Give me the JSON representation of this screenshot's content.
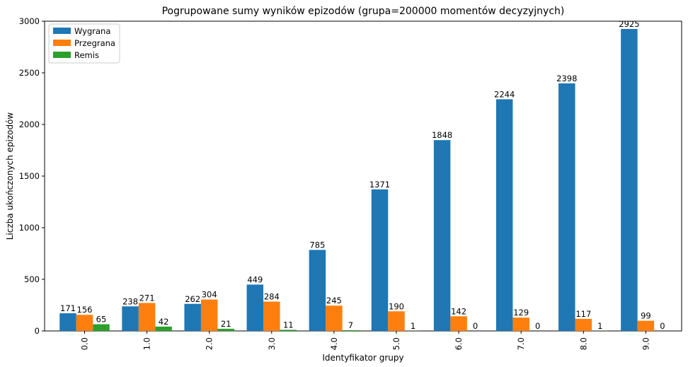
{
  "chart_data": {
    "type": "bar",
    "title": "Pogrupowane sumy wyników epizodów (grupa=200000 momentów decyzyjnych)",
    "xlabel": "Identyfikator grupy",
    "ylabel": "Liczba ukończonych epizodów",
    "categories": [
      "0.0",
      "1.0",
      "2.0",
      "3.0",
      "4.0",
      "5.0",
      "6.0",
      "7.0",
      "8.0",
      "9.0"
    ],
    "series": [
      {
        "name": "Wygrana",
        "color": "#1f77b4",
        "values": [
          171,
          238,
          262,
          449,
          785,
          1371,
          1848,
          2244,
          2398,
          2925
        ]
      },
      {
        "name": "Przegrana",
        "color": "#ff7f0e",
        "values": [
          156,
          271,
          304,
          284,
          245,
          190,
          142,
          129,
          117,
          99
        ]
      },
      {
        "name": "Remis",
        "color": "#2ca02c",
        "values": [
          65,
          42,
          21,
          11,
          7,
          1,
          0,
          0,
          1,
          0
        ]
      }
    ],
    "ylim": [
      0,
      3000
    ],
    "yticks": [
      0,
      500,
      1000,
      1500,
      2000,
      2500,
      3000
    ],
    "grid": false,
    "legend": "top-left"
  }
}
